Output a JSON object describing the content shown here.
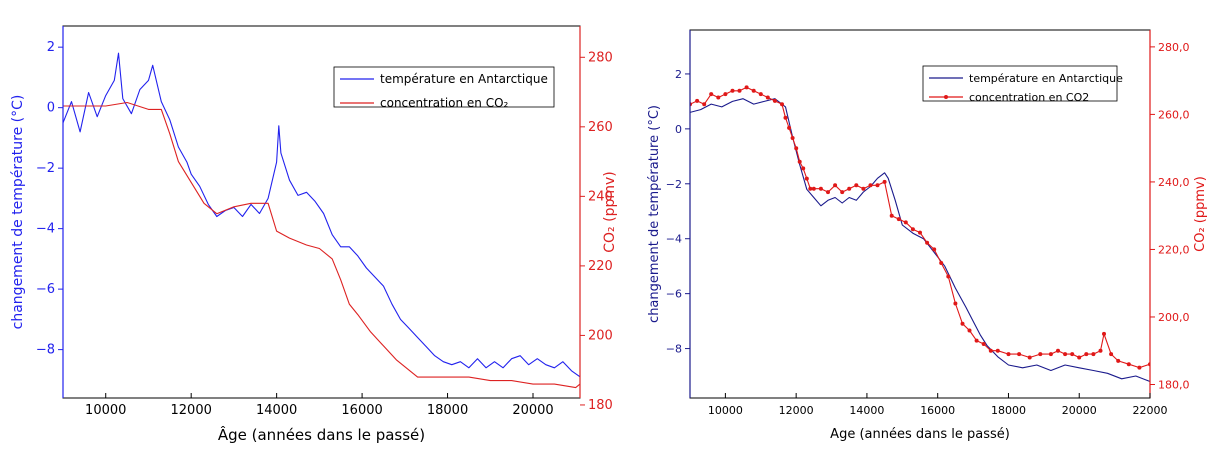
{
  "chart_data": [
    {
      "type": "line",
      "xlabel": "Âge (années dans le passé)",
      "ylabel_left": "changement de température (°C)",
      "ylabel_right": "CO₂ (ppmv)",
      "xlim": [
        9000,
        21100
      ],
      "ylim_left": [
        -9.6,
        2.7
      ],
      "ylim_right": [
        182,
        289
      ],
      "x_ticks": [
        10000,
        12000,
        14000,
        16000,
        18000,
        20000
      ],
      "x_tick_labels": [
        "10000",
        "12000",
        "14000",
        "16000",
        "18000",
        "20000"
      ],
      "y_left_ticks": [
        2,
        0,
        -2,
        -4,
        -6,
        -8
      ],
      "y_left_tick_labels": [
        "2",
        "0",
        "−2",
        "−4",
        "−6",
        "−8"
      ],
      "y_right_ticks": [
        280,
        260,
        240,
        220,
        200,
        180
      ],
      "y_right_tick_labels": [
        "280",
        "260",
        "240",
        "220",
        "200",
        "180"
      ],
      "legend_position": "top-right",
      "colors": {
        "temperature": "#2222ee",
        "co2": "#dd2222",
        "left_axis": "#2222ee",
        "right_axis": "#dd2222"
      },
      "series": [
        {
          "name": "température en Antarctique",
          "axis": "left",
          "style": "line",
          "x": [
            9000,
            9200,
            9400,
            9600,
            9800,
            10000,
            10200,
            10300,
            10400,
            10600,
            10800,
            11000,
            11100,
            11300,
            11500,
            11700,
            11900,
            12000,
            12200,
            12400,
            12600,
            12800,
            13000,
            13200,
            13400,
            13600,
            13800,
            14000,
            14050,
            14100,
            14300,
            14500,
            14700,
            14900,
            15100,
            15300,
            15500,
            15700,
            15900,
            16100,
            16300,
            16500,
            16700,
            16900,
            17100,
            17300,
            17500,
            17700,
            17900,
            18100,
            18300,
            18500,
            18700,
            18900,
            19100,
            19300,
            19500,
            19700,
            19900,
            20100,
            20300,
            20500,
            20700,
            20900,
            21100
          ],
          "y": [
            -0.5,
            0.2,
            -0.8,
            0.5,
            -0.3,
            0.4,
            0.9,
            1.8,
            0.3,
            -0.2,
            0.6,
            0.9,
            1.4,
            0.2,
            -0.4,
            -1.3,
            -1.8,
            -2.2,
            -2.6,
            -3.2,
            -3.6,
            -3.4,
            -3.3,
            -3.6,
            -3.2,
            -3.5,
            -3.0,
            -1.8,
            -0.6,
            -1.5,
            -2.4,
            -2.9,
            -2.8,
            -3.1,
            -3.5,
            -4.2,
            -4.6,
            -4.6,
            -4.9,
            -5.3,
            -5.6,
            -5.9,
            -6.5,
            -7.0,
            -7.3,
            -7.6,
            -7.9,
            -8.2,
            -8.4,
            -8.5,
            -8.4,
            -8.6,
            -8.3,
            -8.6,
            -8.4,
            -8.6,
            -8.3,
            -8.2,
            -8.5,
            -8.3,
            -8.5,
            -8.6,
            -8.4,
            -8.7,
            -8.9
          ]
        },
        {
          "name": "concentration en CO₂",
          "axis": "right",
          "style": "line",
          "x": [
            9000,
            9500,
            10000,
            10500,
            11000,
            11300,
            11500,
            11700,
            12000,
            12300,
            12600,
            13000,
            13400,
            13600,
            13800,
            14000,
            14300,
            14700,
            15000,
            15300,
            15500,
            15700,
            15900,
            16200,
            16500,
            16800,
            17100,
            17300,
            17600,
            18000,
            18500,
            19000,
            19500,
            20000,
            20500,
            21000,
            21100
          ],
          "y": [
            266,
            266,
            266,
            267,
            265,
            265,
            258,
            250,
            244,
            238,
            235,
            237,
            238,
            238,
            238,
            230,
            228,
            226,
            225,
            222,
            216,
            209,
            206,
            201,
            197,
            193,
            190,
            188,
            188,
            188,
            188,
            187,
            187,
            186,
            186,
            185,
            186
          ]
        }
      ]
    },
    {
      "type": "line",
      "xlabel": "Age (années dans le passé)",
      "ylabel_left": "changement de température (°C)",
      "ylabel_right": "CO₂ (ppmv)",
      "xlim": [
        9000,
        22000
      ],
      "ylim_left": [
        -9.8,
        3.6
      ],
      "ylim_right": [
        176,
        285
      ],
      "x_ticks": [
        10000,
        12000,
        14000,
        16000,
        18000,
        20000,
        22000
      ],
      "x_tick_labels": [
        "10000",
        "12000",
        "14000",
        "16000",
        "18000",
        "20000",
        "22000"
      ],
      "y_left_ticks": [
        2,
        0,
        -2,
        -4,
        -6,
        -8
      ],
      "y_left_tick_labels": [
        "2",
        "0",
        "−2",
        "−4",
        "−6",
        "−8"
      ],
      "y_right_ticks": [
        280,
        260,
        240,
        220,
        200,
        180
      ],
      "y_right_tick_labels": [
        "280,0",
        "260,0",
        "240,0",
        "220,0",
        "200,0",
        "180,0"
      ],
      "legend_position": "top-right",
      "colors": {
        "temperature": "#1a1a8c",
        "co2": "#e01818",
        "left_axis": "#1a1a8c",
        "right_axis": "#e01818"
      },
      "series": [
        {
          "name": "température en Antarctique",
          "axis": "left",
          "style": "line",
          "x": [
            9000,
            9300,
            9600,
            9900,
            10200,
            10500,
            10800,
            11100,
            11400,
            11700,
            11900,
            12100,
            12300,
            12500,
            12700,
            12900,
            13100,
            13300,
            13500,
            13700,
            13900,
            14100,
            14300,
            14500,
            14600,
            14800,
            15000,
            15300,
            15600,
            15900,
            16200,
            16500,
            16800,
            17000,
            17200,
            17400,
            17700,
            18000,
            18400,
            18800,
            19200,
            19600,
            20000,
            20400,
            20800,
            21200,
            21600,
            22000
          ],
          "y": [
            0.6,
            0.7,
            0.9,
            0.8,
            1.0,
            1.1,
            0.9,
            1.0,
            1.1,
            0.8,
            -0.3,
            -1.3,
            -2.2,
            -2.5,
            -2.8,
            -2.6,
            -2.5,
            -2.7,
            -2.5,
            -2.6,
            -2.3,
            -2.1,
            -1.8,
            -1.6,
            -1.8,
            -2.6,
            -3.5,
            -3.8,
            -4.0,
            -4.5,
            -5.0,
            -5.8,
            -6.5,
            -7.0,
            -7.5,
            -7.9,
            -8.3,
            -8.6,
            -8.7,
            -8.6,
            -8.8,
            -8.6,
            -8.7,
            -8.8,
            -8.9,
            -9.1,
            -9.0,
            -9.2
          ]
        },
        {
          "name": "concentration en CO2",
          "axis": "right",
          "style": "line-markers",
          "x": [
            9000,
            9200,
            9400,
            9600,
            9800,
            10000,
            10200,
            10400,
            10600,
            10800,
            11000,
            11200,
            11400,
            11600,
            11700,
            11800,
            11900,
            12000,
            12100,
            12200,
            12300,
            12400,
            12500,
            12700,
            12900,
            13100,
            13300,
            13500,
            13700,
            13900,
            14100,
            14300,
            14500,
            14700,
            14900,
            15100,
            15300,
            15500,
            15700,
            15900,
            16100,
            16300,
            16500,
            16700,
            16900,
            17100,
            17300,
            17500,
            17700,
            18000,
            18300,
            18600,
            18900,
            19200,
            19400,
            19600,
            19800,
            20000,
            20200,
            20400,
            20600,
            20700,
            20900,
            21100,
            21400,
            21700,
            22000
          ],
          "y": [
            263,
            264,
            263,
            266,
            265,
            266,
            267,
            267,
            268,
            267,
            266,
            265,
            264,
            263,
            259,
            256,
            253,
            250,
            246,
            244,
            241,
            238,
            238,
            238,
            237,
            239,
            237,
            238,
            239,
            238,
            239,
            239,
            240,
            230,
            229,
            228,
            226,
            225,
            222,
            220,
            216,
            212,
            204,
            198,
            196,
            193,
            192,
            190,
            190,
            189,
            189,
            188,
            189,
            189,
            190,
            189,
            189,
            188,
            189,
            189,
            190,
            195,
            189,
            187,
            186,
            185,
            186
          ]
        }
      ]
    }
  ]
}
